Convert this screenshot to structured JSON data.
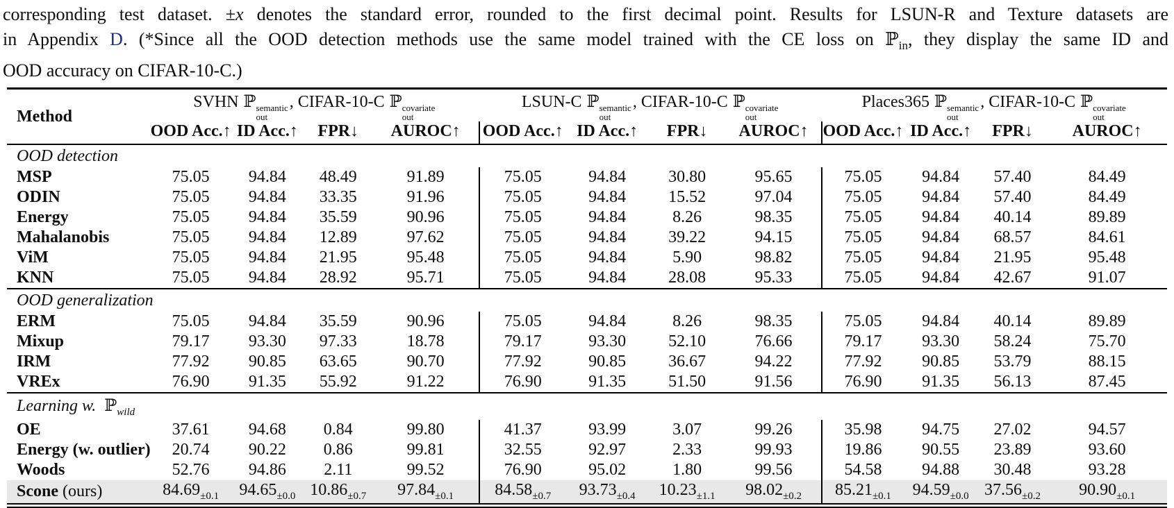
{
  "caption": {
    "line1": {
      "a": "corresponding test dataset. ±",
      "x": "x",
      "b": " denotes the standard error, rounded to the first decimal point. Results for LSUN-R and Texture datasets are"
    },
    "line2": {
      "a": "in Appendix ",
      "link": "D",
      "b": ". (*Since all the OOD detection methods use the same model trained with the CE loss on ",
      "p": "ℙ",
      "psub": "in",
      "c": ", they display the same ID and"
    },
    "line3": "OOD accuracy on CIFAR-10-C.)"
  },
  "colors": {
    "link_blue": "#1b2e8c",
    "highlight_bg": "#e8e8e8",
    "rule_black": "#000000"
  },
  "table": {
    "method_header": "Method",
    "p_symbol": "ℙ",
    "groups": [
      {
        "name": "SVHN",
        "p_sup": "semantic",
        "p_sub": "out",
        "mid": ", CIFAR-10-C",
        "p2_sup": "covariate",
        "p2_sub": "out"
      },
      {
        "name": "LSUN-C",
        "p_sup": "semantic",
        "p_sub": "out",
        "mid": ", CIFAR-10-C",
        "p2_sup": "covariate",
        "p2_sub": "out"
      },
      {
        "name": "Places365",
        "p_sup": "semantic",
        "p_sub": "out",
        "mid": ", CIFAR-10-C",
        "p2_sup": "covariate",
        "p2_sub": "out"
      }
    ],
    "columns": [
      "OOD Acc.↑",
      "ID Acc.↑",
      "FPR↓",
      "AUROC↑"
    ],
    "sections": [
      {
        "label": "OOD detection",
        "rows": [
          {
            "method": "MSP",
            "values": [
              "75.05",
              "94.84",
              "48.49",
              "91.89",
              "75.05",
              "94.84",
              "30.80",
              "95.65",
              "75.05",
              "94.84",
              "57.40",
              "84.49"
            ]
          },
          {
            "method": "ODIN",
            "values": [
              "75.05",
              "94.84",
              "33.35",
              "91.96",
              "75.05",
              "94.84",
              "15.52",
              "97.04",
              "75.05",
              "94.84",
              "57.40",
              "84.49"
            ]
          },
          {
            "method": "Energy",
            "values": [
              "75.05",
              "94.84",
              "35.59",
              "90.96",
              "75.05",
              "94.84",
              "8.26",
              "98.35",
              "75.05",
              "94.84",
              "40.14",
              "89.89"
            ]
          },
          {
            "method": "Mahalanobis",
            "values": [
              "75.05",
              "94.84",
              "12.89",
              "97.62",
              "75.05",
              "94.84",
              "39.22",
              "94.15",
              "75.05",
              "94.84",
              "68.57",
              "84.61"
            ]
          },
          {
            "method": "ViM",
            "values": [
              "75.05",
              "94.84",
              "21.95",
              "95.48",
              "75.05",
              "94.84",
              "5.90",
              "98.82",
              "75.05",
              "94.84",
              "21.95",
              "95.48"
            ]
          },
          {
            "method": "KNN",
            "values": [
              "75.05",
              "94.84",
              "28.92",
              "95.71",
              "75.05",
              "94.84",
              "28.08",
              "95.33",
              "75.05",
              "94.84",
              "42.67",
              "91.07"
            ]
          }
        ]
      },
      {
        "label": "OOD generalization",
        "rows": [
          {
            "method": "ERM",
            "values": [
              "75.05",
              "94.84",
              "35.59",
              "90.96",
              "75.05",
              "94.84",
              "8.26",
              "98.35",
              "75.05",
              "94.84",
              "40.14",
              "89.89"
            ]
          },
          {
            "method": "Mixup",
            "values": [
              "79.17",
              "93.30",
              "97.33",
              "18.78",
              "79.17",
              "93.30",
              "52.10",
              "76.66",
              "79.17",
              "93.30",
              "58.24",
              "75.70"
            ]
          },
          {
            "method": "IRM",
            "values": [
              "77.92",
              "90.85",
              "63.65",
              "90.70",
              "77.92",
              "90.85",
              "36.67",
              "94.22",
              "77.92",
              "90.85",
              "53.79",
              "88.15"
            ]
          },
          {
            "method": "VREx",
            "values": [
              "76.90",
              "91.35",
              "55.92",
              "91.22",
              "76.90",
              "91.35",
              "51.50",
              "91.56",
              "76.90",
              "91.35",
              "56.13",
              "87.45"
            ]
          }
        ]
      },
      {
        "label": "Learning w. ",
        "p": "ℙ",
        "p_sub": "wild",
        "rows": [
          {
            "method": "OE",
            "values": [
              "37.61",
              "94.68",
              "0.84",
              "99.80",
              "41.37",
              "93.99",
              "3.07",
              "99.26",
              "35.98",
              "94.75",
              "27.02",
              "94.57"
            ]
          },
          {
            "method": "Energy (w. outlier)",
            "values": [
              "20.74",
              "90.22",
              "0.86",
              "99.81",
              "32.55",
              "92.97",
              "2.33",
              "99.93",
              "19.86",
              "90.55",
              "23.89",
              "93.60"
            ]
          },
          {
            "method": "Woods",
            "values": [
              "52.76",
              "94.86",
              "2.11",
              "99.52",
              "76.90",
              "95.02",
              "1.80",
              "99.56",
              "54.58",
              "94.88",
              "30.48",
              "93.28"
            ]
          }
        ]
      }
    ],
    "highlight_row": {
      "method_bold": "Scone",
      "method_rest": " (ours)",
      "values": [
        "84.69",
        "94.65",
        "10.86",
        "97.84",
        "84.58",
        "93.73",
        "10.23",
        "98.02",
        "85.21",
        "94.59",
        "37.56",
        "90.90"
      ],
      "errors": [
        "±0.1",
        "±0.0",
        "±0.7",
        "±0.1",
        "±0.7",
        "±0.4",
        "±1.1",
        "±0.2",
        "±0.1",
        "±0.0",
        "±0.2",
        "±0.1"
      ]
    }
  }
}
